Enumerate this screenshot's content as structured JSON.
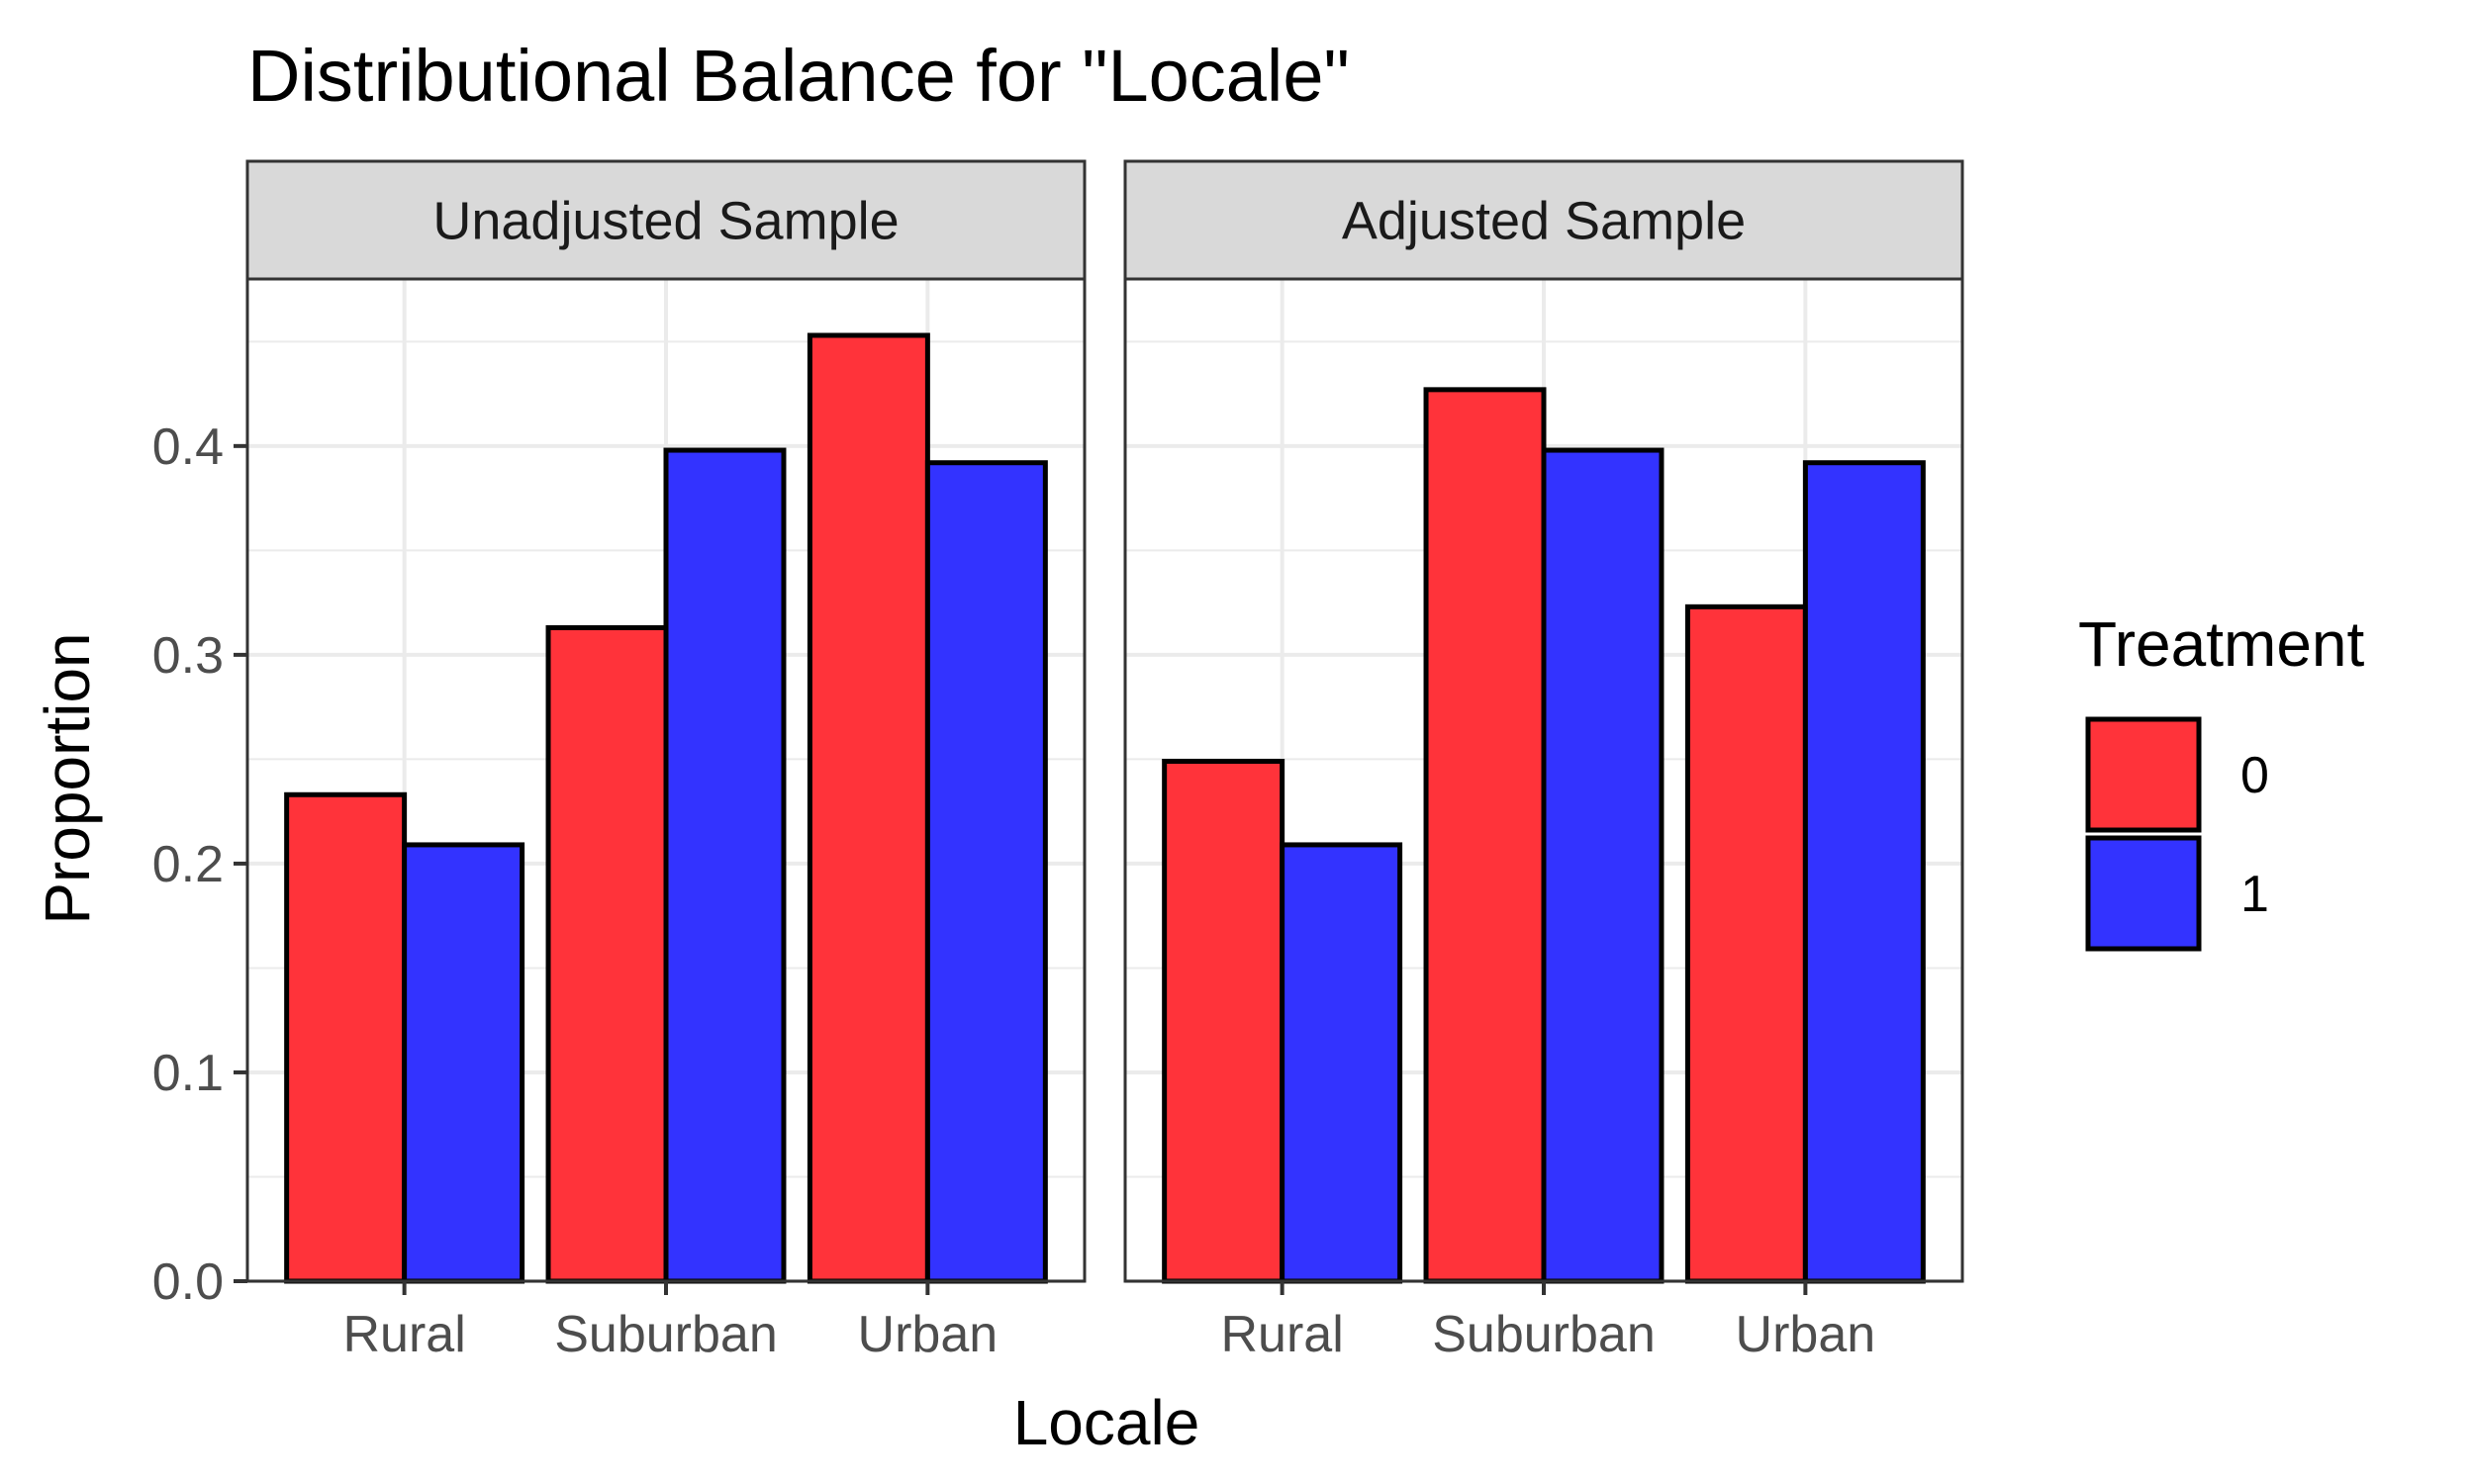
{
  "chart_data": {
    "type": "bar",
    "title": "Distributional Balance for \"Locale\"",
    "xlabel": "Locale",
    "ylabel": "Proportion",
    "categories": [
      "Rural",
      "Suburban",
      "Urban"
    ],
    "ylim": [
      0,
      0.48
    ],
    "yticks": [
      0.0,
      0.1,
      0.2,
      0.3,
      0.4
    ],
    "ytick_labels": [
      "0.0",
      "0.1",
      "0.2",
      "0.3",
      "0.4"
    ],
    "grid": true,
    "legend": {
      "title": "Treatment",
      "position": "right",
      "entries": [
        {
          "label": "0",
          "color": "#FF333A"
        },
        {
          "label": "1",
          "color": "#3333FF"
        }
      ]
    },
    "panels": [
      {
        "label": "Unadjusted Sample",
        "series": [
          {
            "name": "0",
            "values": [
              0.233,
              0.313,
              0.453
            ]
          },
          {
            "name": "1",
            "values": [
              0.209,
              0.398,
              0.392
            ]
          }
        ]
      },
      {
        "label": "Adjusted Sample",
        "series": [
          {
            "name": "0",
            "values": [
              0.249,
              0.427,
              0.323
            ]
          },
          {
            "name": "1",
            "values": [
              0.209,
              0.398,
              0.392
            ]
          }
        ]
      }
    ]
  }
}
